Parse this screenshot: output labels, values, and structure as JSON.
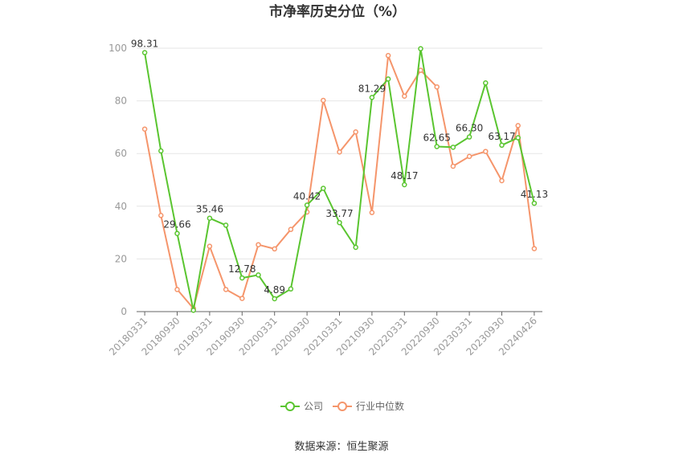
{
  "chart_data": {
    "type": "line",
    "title": "市净率历史分位（%）",
    "xlabel": "",
    "ylabel": "",
    "ylim": [
      0,
      100
    ],
    "yticks": [
      0,
      20,
      40,
      60,
      80,
      100
    ],
    "grid": true,
    "legend_position": "bottom",
    "x": [
      "20180331",
      "20180630",
      "20180930",
      "20181231",
      "20190331",
      "20190630",
      "20190930",
      "20191231",
      "20200331",
      "20200630",
      "20200930",
      "20201231",
      "20210331",
      "20210630",
      "20210930",
      "20211231",
      "20220331",
      "20220630",
      "20220930",
      "20221231",
      "20230331",
      "20230630",
      "20230930",
      "20231231",
      "20240426"
    ],
    "x_tick_labels": [
      "20180331",
      "20180930",
      "20190331",
      "20190930",
      "20200331",
      "20200930",
      "20210331",
      "20210930",
      "20220331",
      "20220930",
      "20230331",
      "20230930",
      "20240426"
    ],
    "series": [
      {
        "name": "公司",
        "color": "#5ac530",
        "values": [
          98.31,
          61.0,
          29.66,
          0.5,
          35.46,
          32.8,
          12.78,
          13.9,
          4.89,
          8.6,
          40.42,
          46.8,
          33.77,
          24.4,
          81.29,
          88.3,
          48.17,
          99.8,
          62.65,
          62.4,
          66.3,
          86.8,
          63.17,
          66.0,
          41.13
        ],
        "labels": {
          "0": "98.31",
          "2": "29.66",
          "4": "35.46",
          "6": "12.78",
          "8": "4.89",
          "10": "40.42",
          "12": "33.77",
          "14": "81.29",
          "16": "48.17",
          "18": "62.65",
          "20": "66.30",
          "22": "63.17",
          "24": "41.13"
        }
      },
      {
        "name": "行业中位数",
        "color": "#f5956b",
        "values": [
          69.3,
          36.5,
          8.4,
          1.2,
          24.8,
          8.4,
          5.0,
          25.4,
          23.8,
          31.2,
          37.8,
          80.2,
          60.6,
          68.2,
          37.6,
          97.2,
          81.8,
          91.6,
          85.3,
          55.2,
          58.9,
          60.8,
          49.7,
          70.6,
          23.9
        ]
      }
    ]
  },
  "source": "数据来源：恒生聚源"
}
